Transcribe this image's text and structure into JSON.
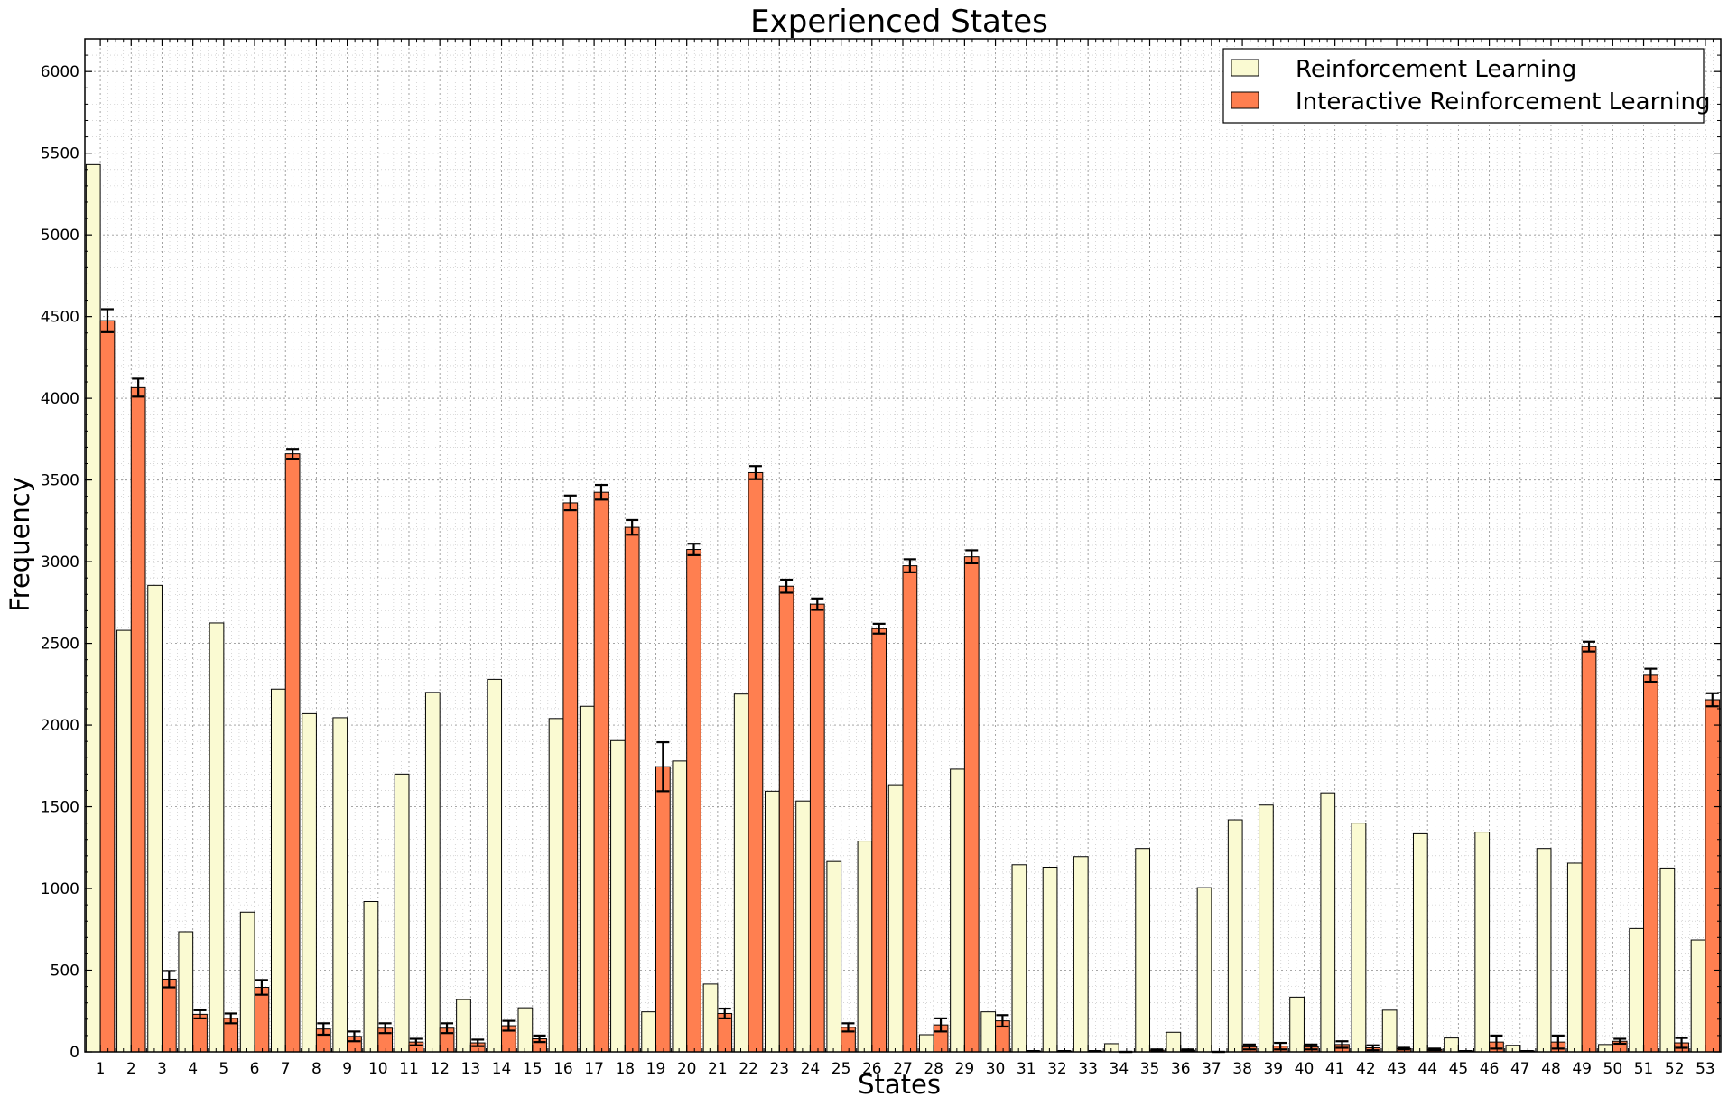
{
  "chart_data": {
    "type": "bar",
    "title": "Experienced States",
    "xlabel": "States",
    "ylabel": "Frequency",
    "ylim": [
      0,
      6200
    ],
    "yticks": [
      0,
      500,
      1000,
      1500,
      2000,
      2500,
      3000,
      3500,
      4000,
      4500,
      5000,
      5500,
      6000
    ],
    "grid": true,
    "legend_position": "top-right",
    "categories": [
      "1",
      "2",
      "3",
      "4",
      "5",
      "6",
      "7",
      "8",
      "9",
      "10",
      "11",
      "12",
      "13",
      "14",
      "15",
      "16",
      "17",
      "18",
      "19",
      "20",
      "21",
      "22",
      "23",
      "24",
      "25",
      "26",
      "27",
      "28",
      "29",
      "30",
      "31",
      "32",
      "33",
      "34",
      "35",
      "36",
      "37",
      "38",
      "39",
      "40",
      "41",
      "42",
      "43",
      "44",
      "45",
      "46",
      "47",
      "48",
      "49",
      "50",
      "51",
      "52",
      "53"
    ],
    "series": [
      {
        "name": "Reinforcement Learning",
        "color": "#fafad2",
        "values": [
          5430,
          2580,
          2855,
          735,
          2625,
          855,
          2220,
          2070,
          2045,
          920,
          1700,
          2200,
          320,
          2280,
          270,
          2040,
          2115,
          1905,
          245,
          1780,
          415,
          2190,
          1595,
          1535,
          1165,
          1290,
          1635,
          105,
          1730,
          245,
          1145,
          1130,
          1195,
          50,
          1245,
          120,
          1005,
          1420,
          1510,
          335,
          1585,
          1400,
          255,
          1335,
          85,
          1345,
          40,
          1245,
          1155,
          45,
          755,
          1125,
          685
        ]
      },
      {
        "name": "Interactive Reinforcement Learning",
        "color": "#ff7f50",
        "values": [
          4475,
          4065,
          445,
          230,
          205,
          395,
          3660,
          140,
          95,
          145,
          60,
          145,
          55,
          160,
          80,
          3360,
          3425,
          3210,
          1745,
          3075,
          235,
          3545,
          2850,
          2740,
          150,
          2590,
          2975,
          165,
          3030,
          190,
          5,
          5,
          5,
          0,
          10,
          10,
          0,
          30,
          35,
          30,
          45,
          25,
          20,
          15,
          5,
          60,
          5,
          60,
          2480,
          65,
          2305,
          55,
          2155
        ],
        "errors": [
          70,
          55,
          50,
          25,
          30,
          45,
          30,
          35,
          30,
          30,
          20,
          30,
          20,
          30,
          20,
          45,
          45,
          45,
          150,
          35,
          30,
          40,
          40,
          35,
          25,
          30,
          40,
          40,
          40,
          35,
          0,
          0,
          0,
          0,
          5,
          5,
          0,
          15,
          20,
          15,
          20,
          15,
          5,
          5,
          0,
          40,
          0,
          40,
          30,
          15,
          40,
          30,
          40
        ]
      }
    ]
  }
}
